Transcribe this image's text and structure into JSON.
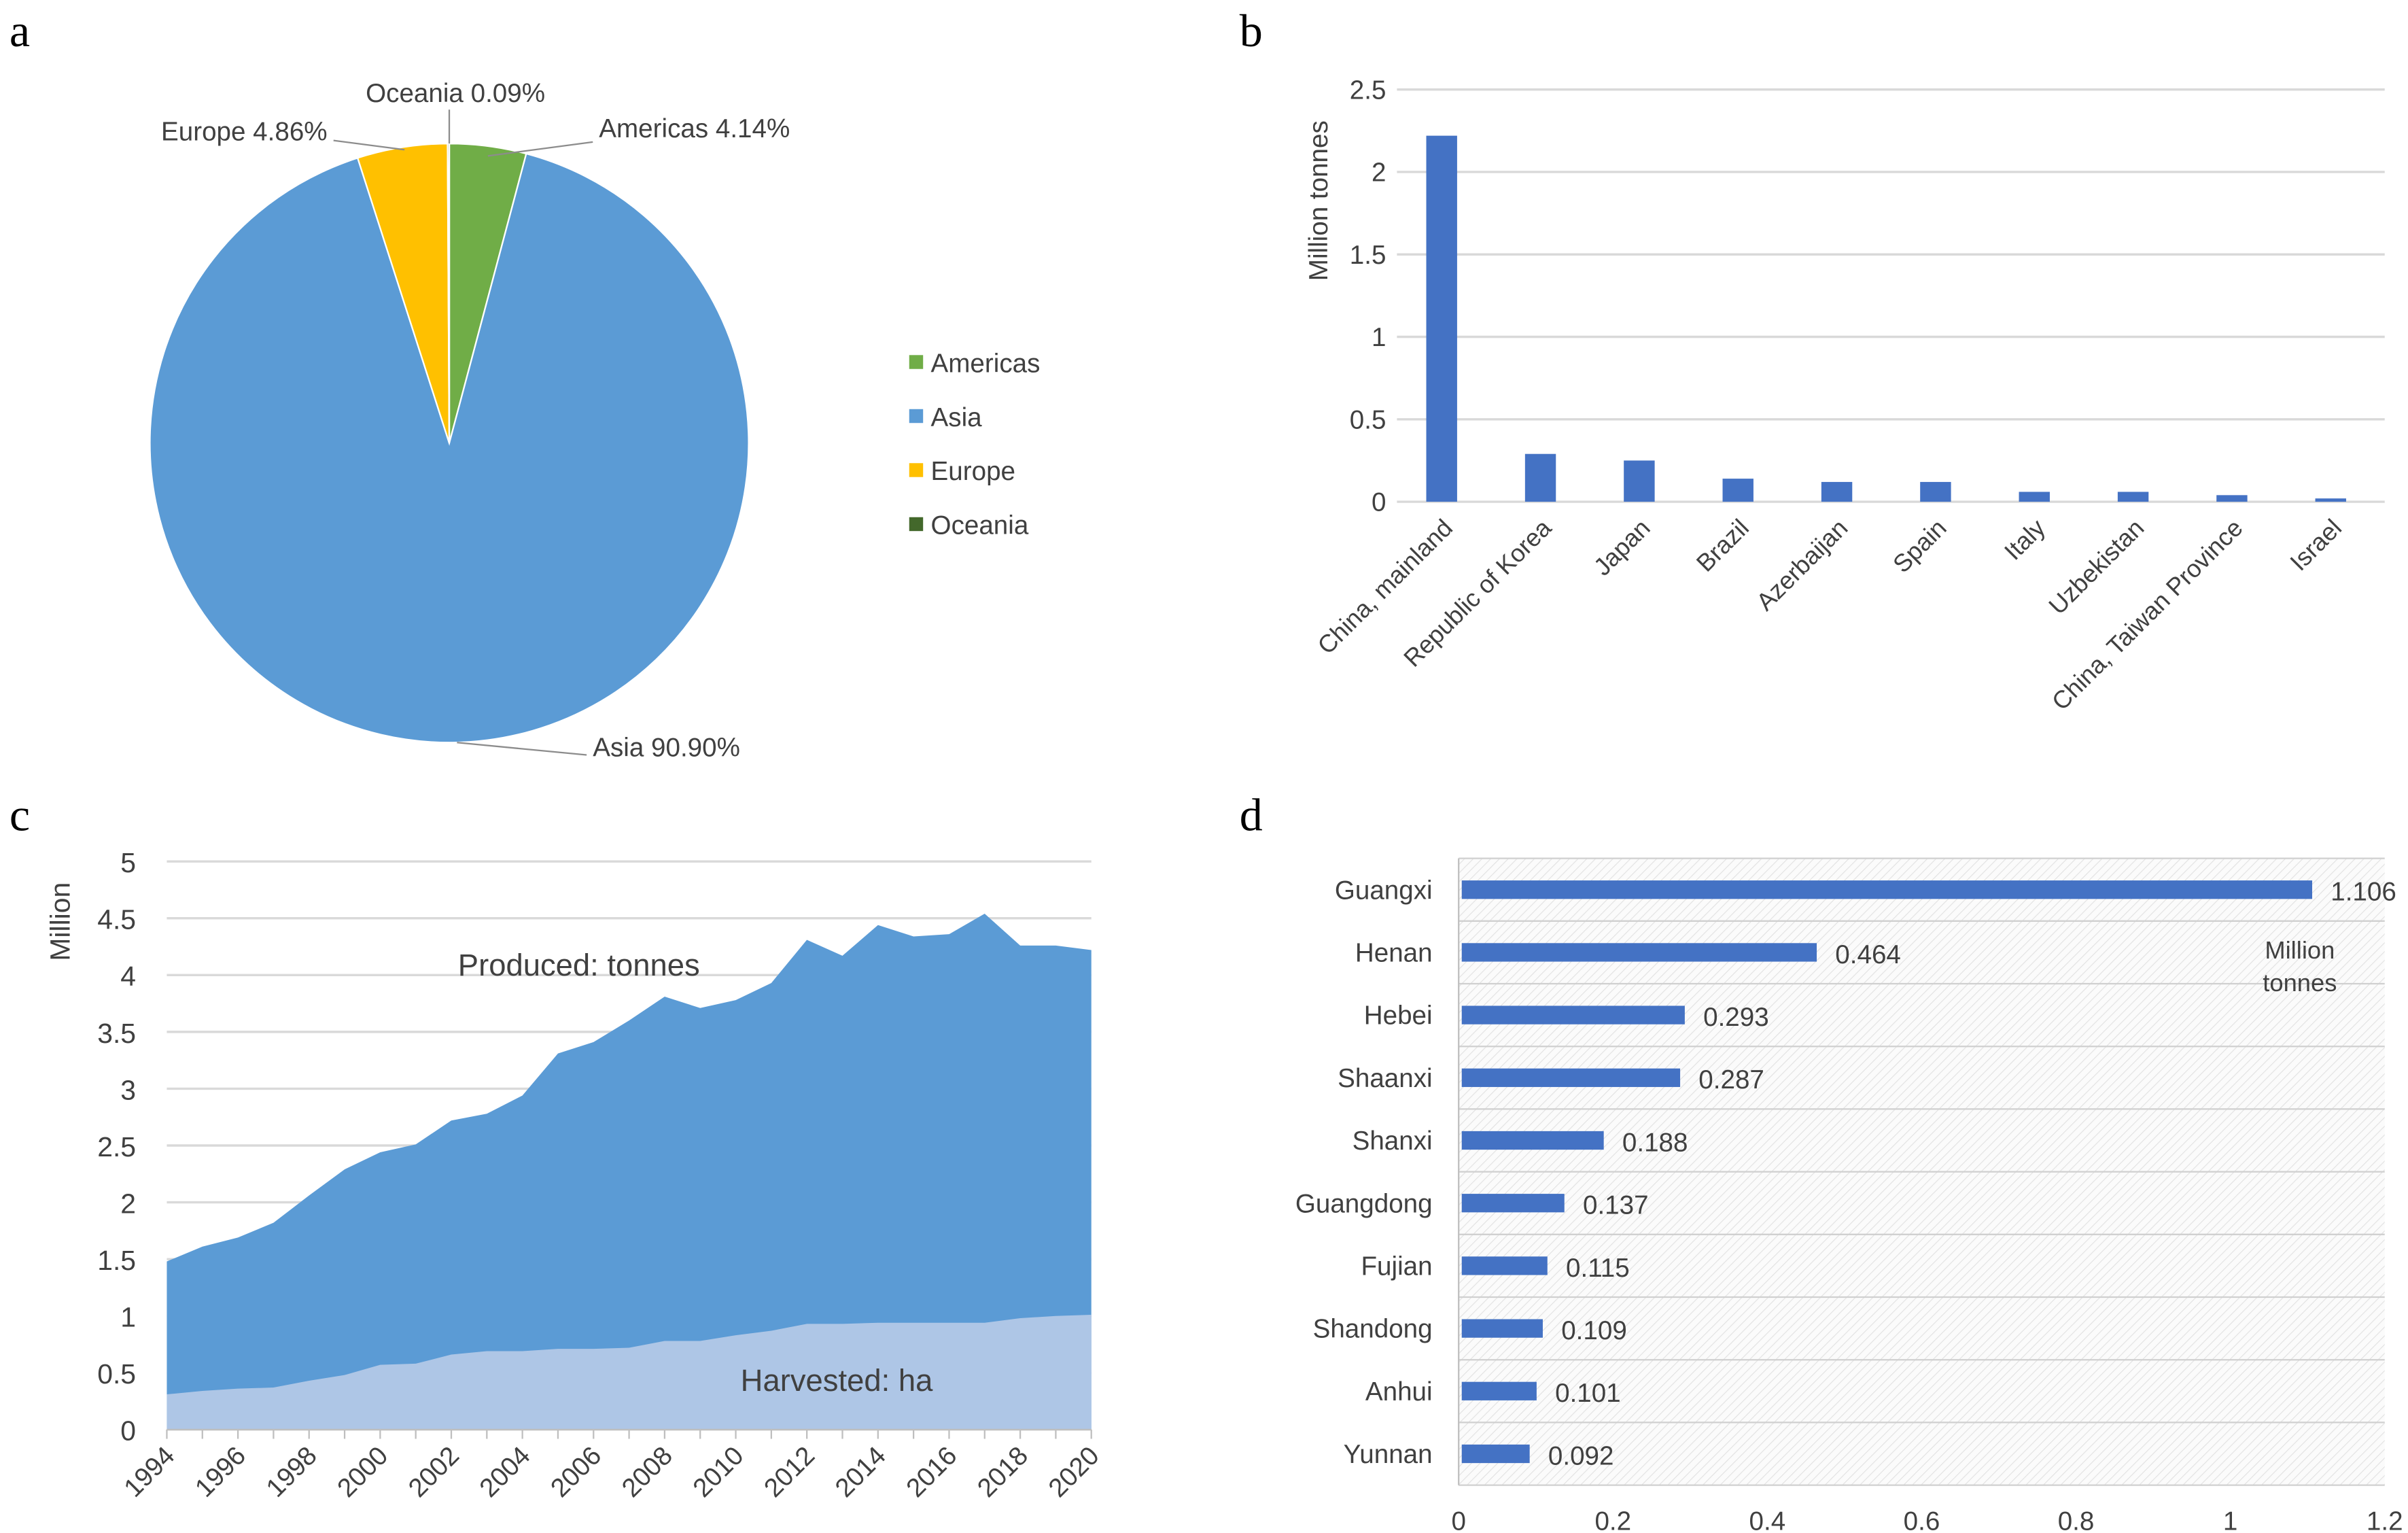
{
  "panel_letters": [
    "a",
    "b",
    "c",
    "d"
  ],
  "colors": {
    "americas": "#70ad47",
    "asia": "#5b9bd5",
    "europe": "#ffc000",
    "oceania": "#43682b",
    "bar_blue": "#4472c4",
    "produced": "#5b9bd5",
    "harvested": "#aec6e6",
    "grid": "#d9d9d9"
  },
  "chart_data": [
    {
      "panel": "a",
      "type": "pie",
      "slices": [
        {
          "name": "Americas",
          "value": 4.14,
          "label": "Americas 4.14%"
        },
        {
          "name": "Asia",
          "value": 90.9,
          "label": "Asia 90.90%"
        },
        {
          "name": "Europe",
          "value": 4.86,
          "label": "Europe 4.86%"
        },
        {
          "name": "Oceania",
          "value": 0.09,
          "label": "Oceania 0.09%"
        }
      ],
      "legend": [
        "Americas",
        "Asia",
        "Europe",
        "Oceania"
      ],
      "legend_position": "right"
    },
    {
      "panel": "b",
      "type": "bar",
      "categories": [
        "China, mainland",
        "Republic of Korea",
        "Japan",
        "Brazil",
        "Azerbaijan",
        "Spain",
        "Italy",
        "Uzbekistan",
        "China, Taiwan Province",
        "Israel"
      ],
      "values": [
        2.22,
        0.29,
        0.25,
        0.14,
        0.12,
        0.12,
        0.06,
        0.06,
        0.04,
        0.02
      ],
      "ylabel": "Million tonnes",
      "ylim": [
        0,
        2.5
      ],
      "yticks": [
        "0",
        "0.5",
        "1",
        "1.5",
        "2",
        "2.5"
      ],
      "grid": true
    },
    {
      "panel": "c",
      "type": "area",
      "x": [
        1994,
        1995,
        1996,
        1997,
        1998,
        1999,
        2000,
        2001,
        2002,
        2003,
        2004,
        2005,
        2006,
        2007,
        2008,
        2009,
        2010,
        2011,
        2012,
        2013,
        2014,
        2015,
        2016,
        2017,
        2018,
        2019,
        2020
      ],
      "series": [
        {
          "name": "Produced: tonnes",
          "values": [
            1.48,
            1.61,
            1.69,
            1.82,
            2.06,
            2.29,
            2.44,
            2.51,
            2.72,
            2.78,
            2.94,
            3.31,
            3.41,
            3.6,
            3.81,
            3.71,
            3.78,
            3.93,
            4.31,
            4.17,
            4.44,
            4.34,
            4.36,
            4.54,
            4.26,
            4.26,
            4.22
          ]
        },
        {
          "name": "Harvested: ha",
          "values": [
            0.31,
            0.34,
            0.36,
            0.37,
            0.43,
            0.48,
            0.57,
            0.58,
            0.66,
            0.69,
            0.69,
            0.71,
            0.71,
            0.72,
            0.78,
            0.78,
            0.83,
            0.87,
            0.93,
            0.93,
            0.94,
            0.94,
            0.94,
            0.94,
            0.98,
            1.0,
            1.01
          ]
        }
      ],
      "ylabel": "Million",
      "ylim": [
        0,
        5
      ],
      "yticks": [
        "0",
        "0.5",
        "1",
        "1.5",
        "2",
        "2.5",
        "3",
        "3.5",
        "4",
        "4.5",
        "5"
      ],
      "xticks": [
        "1994",
        "1996",
        "1998",
        "2000",
        "2002",
        "2004",
        "2006",
        "2008",
        "2010",
        "2012",
        "2014",
        "2016",
        "2018",
        "2020"
      ],
      "grid": true
    },
    {
      "panel": "d",
      "type": "bar",
      "orientation": "horizontal",
      "categories": [
        "Guangxi",
        "Henan",
        "Hebei",
        "Shaanxi",
        "Shanxi",
        "Guangdong",
        "Fujian",
        "Shandong",
        "Anhui",
        "Yunnan"
      ],
      "values": [
        1.106,
        0.464,
        0.293,
        0.287,
        0.188,
        0.137,
        0.115,
        0.109,
        0.101,
        0.092
      ],
      "value_labels": [
        "1.106",
        "0.464",
        "0.293",
        "0.287",
        "0.188",
        "0.137",
        "0.115",
        "0.109",
        "0.101",
        "0.092"
      ],
      "unit_label": [
        "Million",
        "tonnes"
      ],
      "xlim": [
        0,
        1.2
      ],
      "xticks": [
        "0",
        "0.2",
        "0.4",
        "0.6",
        "0.8",
        "1",
        "1.2"
      ],
      "grid": true
    }
  ]
}
